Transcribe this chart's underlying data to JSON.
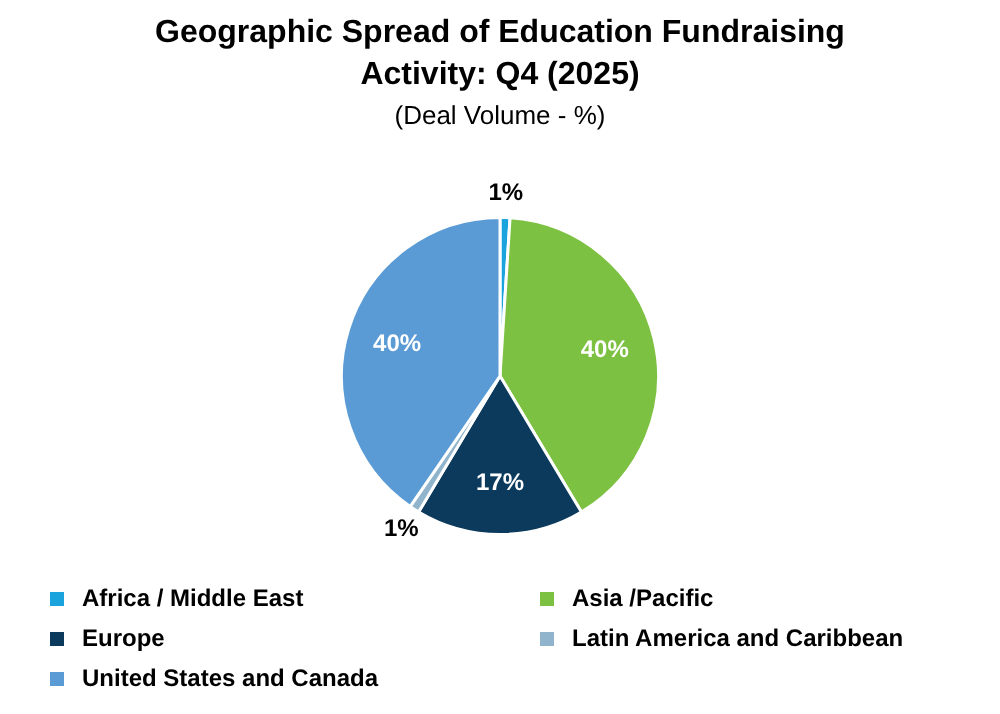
{
  "chart_data": {
    "type": "pie",
    "title": "Geographic Spread of Education Fundraising Activity: Q4 (2025)",
    "subtitle": "(Deal Volume - %)",
    "categories": [
      "Africa / Middle East",
      "Asia /Pacific",
      "Europe",
      "Latin America and Caribbean",
      "United States and Canada"
    ],
    "values": [
      1,
      40,
      17,
      1,
      40
    ],
    "colors": [
      "#1aa3dc",
      "#7dc142",
      "#0b3a5c",
      "#8fb4cc",
      "#5b9bd5"
    ],
    "value_labels": [
      "1%",
      "40%",
      "17%",
      "1%",
      "40%"
    ],
    "legend": "bottom"
  }
}
